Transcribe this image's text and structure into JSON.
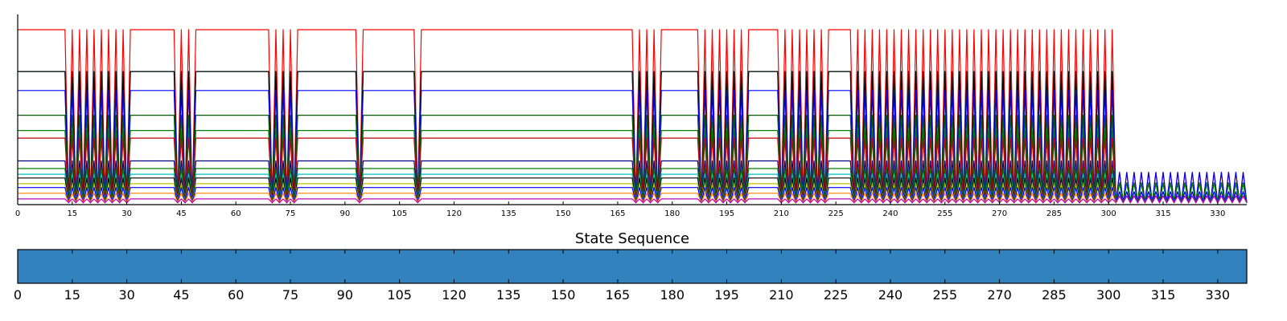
{
  "chart_data": [
    {
      "type": "line",
      "title": "",
      "xlabel": "",
      "ylabel": "",
      "xlim": [
        0,
        338
      ],
      "ylim": [
        0,
        1.0
      ],
      "xticks": [
        0,
        15,
        30,
        45,
        60,
        75,
        90,
        105,
        120,
        135,
        150,
        165,
        180,
        195,
        210,
        225,
        240,
        255,
        270,
        285,
        300,
        315,
        330
      ],
      "grid": false,
      "legend": "none",
      "baselines": [
        {
          "name": "",
          "color": "#ff0000",
          "level": 0.92
        },
        {
          "name": "",
          "color": "#00bfbf",
          "level": 0.7
        },
        {
          "name": "",
          "color": "#000000",
          "level": 0.7
        },
        {
          "name": "",
          "color": "#0000ff",
          "level": 0.6
        },
        {
          "name": "",
          "color": "#005f00",
          "level": 0.47
        },
        {
          "name": "",
          "color": "#008000",
          "level": 0.39
        },
        {
          "name": "",
          "color": "#bf0000",
          "level": 0.35
        },
        {
          "name": "",
          "color": "#000080",
          "level": 0.23
        },
        {
          "name": "",
          "color": "#008000",
          "level": 0.19
        },
        {
          "name": "",
          "color": "#00bfbf",
          "level": 0.16
        },
        {
          "name": "",
          "color": "#000000",
          "level": 0.14
        },
        {
          "name": "",
          "color": "#bfbf00",
          "level": 0.11
        },
        {
          "name": "",
          "color": "#0000ff",
          "level": 0.09
        },
        {
          "name": "",
          "color": "#ff8000",
          "level": 0.06
        },
        {
          "name": "",
          "color": "#bf00bf",
          "level": 0.03
        }
      ],
      "oscillation_intervals": [
        [
          13,
          30
        ],
        [
          43,
          49
        ],
        [
          69,
          77
        ],
        [
          93,
          95
        ],
        [
          109,
          111
        ],
        [
          169,
          177
        ],
        [
          188,
          200
        ],
        [
          210,
          222
        ],
        [
          229,
          254
        ],
        [
          255,
          292
        ],
        [
          293,
          302
        ]
      ],
      "tail_oscillation": {
        "start": 303,
        "end": 338,
        "period": 2,
        "amplitude": 0.17
      }
    },
    {
      "type": "heatmap",
      "title": "State Sequence",
      "xlim": [
        0,
        338
      ],
      "xticks": [
        0,
        15,
        30,
        45,
        60,
        75,
        90,
        105,
        120,
        135,
        150,
        165,
        180,
        195,
        210,
        225,
        240,
        255,
        270,
        285,
        300,
        315,
        330
      ],
      "states": [
        {
          "from": 0,
          "to": 338,
          "color": "#3182bd"
        }
      ]
    }
  ]
}
